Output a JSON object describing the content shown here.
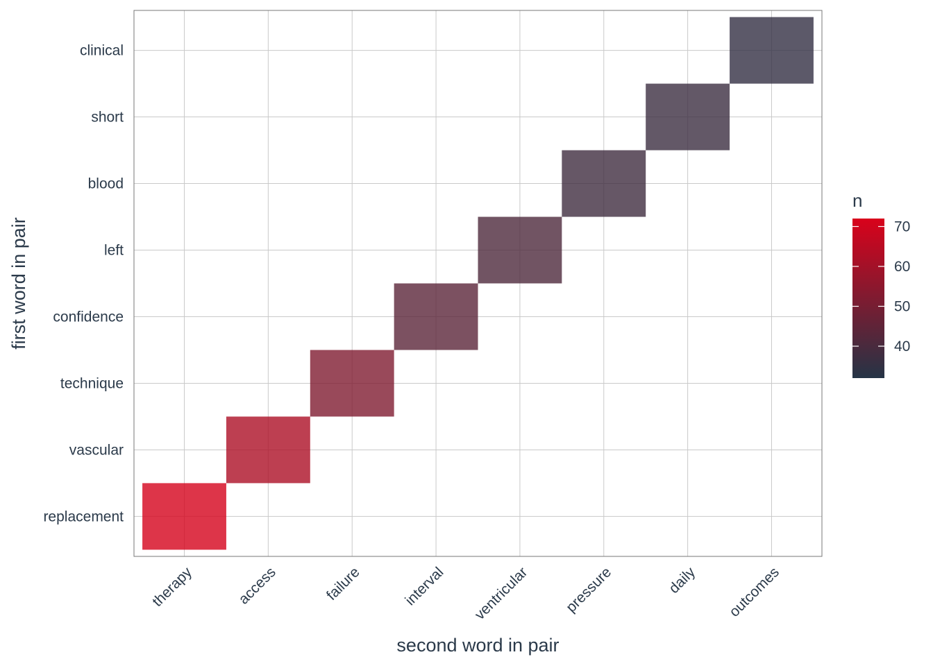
{
  "chart_data": {
    "type": "heatmap",
    "xlabel": "second word in pair",
    "ylabel": "first word in pair",
    "x_categories": [
      "therapy",
      "access",
      "failure",
      "interval",
      "ventricular",
      "pressure",
      "daily",
      "outcomes"
    ],
    "y_categories": [
      "replacement",
      "vascular",
      "technique",
      "confidence",
      "left",
      "blood",
      "short",
      "clinical"
    ],
    "cells": [
      {
        "x": "therapy",
        "y": "replacement",
        "n": 71
      },
      {
        "x": "access",
        "y": "vascular",
        "n": 62
      },
      {
        "x": "failure",
        "y": "technique",
        "n": 52
      },
      {
        "x": "interval",
        "y": "confidence",
        "n": 44
      },
      {
        "x": "ventricular",
        "y": "left",
        "n": 41
      },
      {
        "x": "pressure",
        "y": "blood",
        "n": 38
      },
      {
        "x": "daily",
        "y": "short",
        "n": 37
      },
      {
        "x": "outcomes",
        "y": "clinical",
        "n": 35
      }
    ],
    "legend": {
      "title": "n",
      "placement": "right",
      "range": [
        32,
        72
      ],
      "ticks": [
        40,
        50,
        60,
        70
      ],
      "color_low": "#253446",
      "color_high": "#d9021b"
    },
    "grid": true
  }
}
